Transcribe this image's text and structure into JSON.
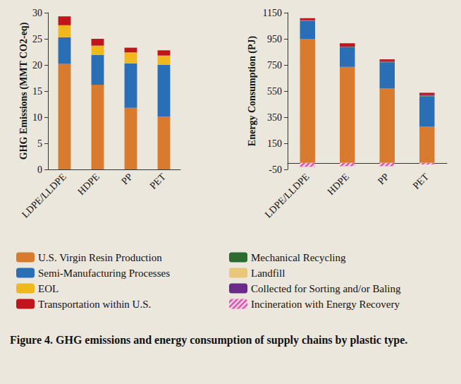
{
  "chart_data": [
    {
      "type": "bar",
      "stacked": true,
      "grid": false,
      "legend": "bottom",
      "ylabel": "GHG Emissions (MMT CO2-eq)",
      "categories": [
        "LDPE/LLDPE",
        "HDPE",
        "PP",
        "PET"
      ],
      "ylim": [
        0,
        30
      ],
      "yticks": [
        0,
        5,
        10,
        15,
        20,
        25,
        30
      ],
      "series": [
        {
          "name": "U.S. Virgin Resin Production",
          "color": "#d97b2f",
          "values": [
            20.2,
            16.2,
            11.8,
            10.1
          ]
        },
        {
          "name": "Semi-Manufacturing Processes",
          "color": "#2a6fb5",
          "values": [
            5.1,
            5.7,
            8.5,
            9.9
          ]
        },
        {
          "name": "EOL",
          "color": "#f0b81c",
          "values": [
            2.3,
            1.8,
            2.1,
            1.8
          ]
        },
        {
          "name": "Transportation within U.S.",
          "color": "#c0151c",
          "values": [
            1.7,
            1.3,
            0.9,
            1.0
          ]
        }
      ]
    },
    {
      "type": "bar",
      "stacked": true,
      "grid": false,
      "legend": "bottom",
      "ylabel": "Energy Consumption (PJ)",
      "categories": [
        "LDPE/LLDPE",
        "HDPE",
        "PP",
        "PET"
      ],
      "ylim": [
        -50,
        1150
      ],
      "yticks": [
        -50,
        150,
        350,
        550,
        750,
        950,
        1150
      ],
      "series": [
        {
          "name": "U.S. Virgin Resin Production",
          "color": "#d97b2f",
          "values": [
            950,
            735,
            570,
            280
          ]
        },
        {
          "name": "Semi-Manufacturing Processes",
          "color": "#2a6fb5",
          "values": [
            135,
            150,
            200,
            230
          ]
        },
        {
          "name": "Mechanical Recycling",
          "color": "#2e6b30",
          "values": [
            2,
            2,
            2,
            3
          ]
        },
        {
          "name": "Landfill",
          "color": "#e8c77a",
          "values": [
            1,
            1,
            1,
            1
          ]
        },
        {
          "name": "Collected for Sorting and/or Baling",
          "color": "#6a2a8a",
          "values": [
            5,
            8,
            5,
            8
          ]
        },
        {
          "name": "Transportation within U.S.",
          "color": "#c0151c",
          "values": [
            15,
            20,
            15,
            15
          ]
        },
        {
          "name": "Incineration with Energy Recovery",
          "color": "#e060b0",
          "values": [
            -30,
            -25,
            -25,
            -12
          ]
        }
      ]
    }
  ],
  "caption_label": "Figure 4.",
  "caption": "GHG emissions and energy consumption of supply chains by plastic type."
}
